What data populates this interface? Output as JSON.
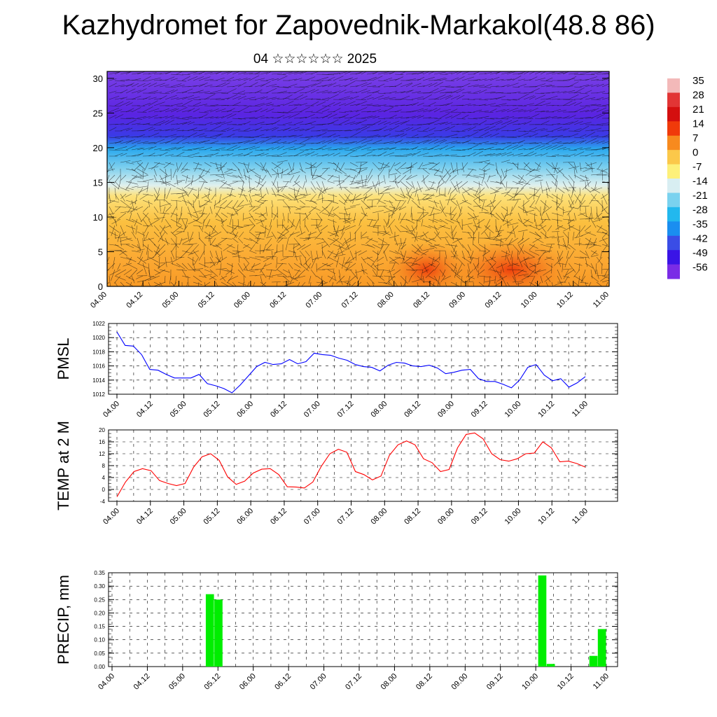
{
  "header": {
    "title": "Kazhydromet for Zapovednik-Markakol(48.8 86)",
    "subtitle": "04 ☆☆☆☆☆☆ 2025"
  },
  "chart_data": [
    {
      "type": "heatmap",
      "description_key": "cross_section",
      "x_ticks": [
        "04.00",
        "04.12",
        "05.00",
        "05.12",
        "06.00",
        "06.12",
        "07.00",
        "07.12",
        "08.00",
        "08.12",
        "09.00",
        "09.12",
        "10.00",
        "10.12",
        "11.00"
      ],
      "y_ticks": [
        0,
        5,
        10,
        15,
        20,
        25,
        30
      ],
      "ylim": [
        0,
        31
      ],
      "colorbar_labels": [
        "35",
        "28",
        "21",
        "14",
        "7",
        "0",
        "-7",
        "-14",
        "-21",
        "-28",
        "-35",
        "-42",
        "-49",
        "-56"
      ],
      "colorbar_colors": [
        "#f3b9b9",
        "#e23535",
        "#d40f0f",
        "#f03a0a",
        "#f78a1e",
        "#fbc84a",
        "#fdf07a",
        "#d8eef2",
        "#7ad2ef",
        "#22b8ee",
        "#1a8ef0",
        "#3a4de6",
        "#3a14e6",
        "#7a2ce6"
      ]
    },
    {
      "type": "line",
      "name_key": "pmsl",
      "ylabel": "PMSL",
      "ylim": [
        1012,
        1022
      ],
      "y_ticks": [
        1012,
        1014,
        1016,
        1018,
        1020,
        1022
      ],
      "x_ticks": [
        "04.00",
        "04.12",
        "05.00",
        "05.12",
        "06.00",
        "06.12",
        "07.00",
        "07.12",
        "08.00",
        "08.12",
        "09.00",
        "09.12",
        "10.00",
        "10.12",
        "11.00"
      ],
      "color": "#0000ff",
      "values": [
        1020.8,
        1018.9,
        1018.8,
        1017.6,
        1015.5,
        1015.4,
        1014.8,
        1014.3,
        1014.3,
        1014.3,
        1014.8,
        1013.5,
        1013.2,
        1012.8,
        1012.2,
        1013.3,
        1014.6,
        1015.9,
        1016.5,
        1016.2,
        1016.3,
        1016.9,
        1016.3,
        1016.6,
        1017.8,
        1017.6,
        1017.5,
        1017.1,
        1016.8,
        1016.2,
        1015.9,
        1015.8,
        1015.3,
        1016.1,
        1016.5,
        1016.4,
        1016.0,
        1015.9,
        1016.1,
        1015.7,
        1014.9,
        1015.1,
        1015.4,
        1015.5,
        1014.2,
        1013.8,
        1013.8,
        1013.4,
        1012.9,
        1014.0,
        1015.8,
        1016.2,
        1014.7,
        1013.9,
        1014.2,
        1013.0,
        1013.6,
        1014.5
      ]
    },
    {
      "type": "line",
      "name_key": "temp2m",
      "ylabel": "TEMP at 2 M",
      "ylim": [
        -4,
        20
      ],
      "y_ticks": [
        -4,
        0,
        4,
        8,
        12,
        16,
        20
      ],
      "x_ticks": [
        "04.00",
        "04.12",
        "05.00",
        "05.12",
        "06.00",
        "06.12",
        "07.00",
        "07.12",
        "08.00",
        "08.12",
        "09.00",
        "09.12",
        "10.00",
        "10.12",
        "11.00"
      ],
      "color": "#ff0000",
      "values": [
        -2.5,
        2.5,
        6.0,
        7.0,
        6.3,
        3.0,
        2.0,
        1.3,
        2.0,
        7.5,
        11.0,
        12.0,
        9.8,
        4.2,
        1.7,
        2.8,
        5.5,
        6.8,
        7.0,
        5.0,
        0.9,
        0.8,
        0.5,
        2.5,
        7.8,
        12.0,
        13.5,
        12.5,
        6.0,
        5.0,
        3.2,
        4.5,
        11.5,
        15.0,
        16.3,
        15.0,
        10.3,
        9.0,
        6.0,
        6.7,
        14.0,
        18.5,
        19.0,
        17.0,
        12.0,
        10.0,
        9.5,
        10.3,
        12.0,
        12.2,
        16.0,
        14.0,
        9.3,
        9.5,
        8.7,
        7.5
      ]
    },
    {
      "type": "bar",
      "name_key": "precip",
      "ylabel": "PRECIP, mm",
      "ylim": [
        0,
        0.35
      ],
      "y_ticks": [
        "0.00",
        "0.05",
        "0.10",
        "0.15",
        "0.20",
        "0.25",
        "0.30",
        "0.35"
      ],
      "x_ticks": [
        "04.00",
        "04.12",
        "05.00",
        "05.12",
        "06.00",
        "06.12",
        "07.00",
        "07.12",
        "08.00",
        "08.12",
        "09.00",
        "09.12",
        "10.00",
        "10.12",
        "11.00"
      ],
      "color": "#00ee00",
      "values": [
        0,
        0,
        0,
        0,
        0,
        0,
        0,
        0,
        0,
        0,
        0,
        0.27,
        0.25,
        0,
        0,
        0,
        0,
        0,
        0,
        0,
        0,
        0,
        0,
        0,
        0,
        0,
        0,
        0,
        0,
        0,
        0,
        0,
        0,
        0,
        0,
        0,
        0,
        0,
        0,
        0,
        0,
        0,
        0,
        0,
        0,
        0,
        0,
        0,
        0,
        0,
        0.34,
        0.01,
        0,
        0,
        0,
        0,
        0.04,
        0.14
      ]
    }
  ]
}
